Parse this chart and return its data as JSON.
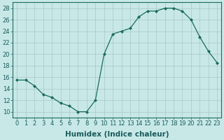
{
  "x": [
    0,
    1,
    2,
    3,
    4,
    5,
    6,
    7,
    8,
    9,
    10,
    11,
    12,
    13,
    14,
    15,
    16,
    17,
    18,
    19,
    20,
    21,
    22,
    23
  ],
  "y": [
    15.5,
    15.5,
    14.5,
    13.0,
    12.5,
    11.5,
    11.0,
    10.0,
    10.0,
    12.0,
    20.0,
    23.5,
    24.0,
    24.5,
    26.5,
    27.5,
    27.5,
    28.0,
    28.0,
    27.5,
    26.0,
    23.0,
    20.5,
    18.5
  ],
  "line_color": "#1a6b5a",
  "marker": "D",
  "marker_size": 2,
  "bg_color": "#c8e8e8",
  "grid_color": "#a8c8c8",
  "xlabel": "Humidex (Indice chaleur)",
  "xlim": [
    -0.5,
    23.5
  ],
  "ylim": [
    9,
    29
  ],
  "yticks": [
    10,
    12,
    14,
    16,
    18,
    20,
    22,
    24,
    26,
    28
  ],
  "xticks": [
    0,
    1,
    2,
    3,
    4,
    5,
    6,
    7,
    8,
    9,
    10,
    11,
    12,
    13,
    14,
    15,
    16,
    17,
    18,
    19,
    20,
    21,
    22,
    23
  ],
  "tick_fontsize": 6,
  "xlabel_fontsize": 7.5
}
